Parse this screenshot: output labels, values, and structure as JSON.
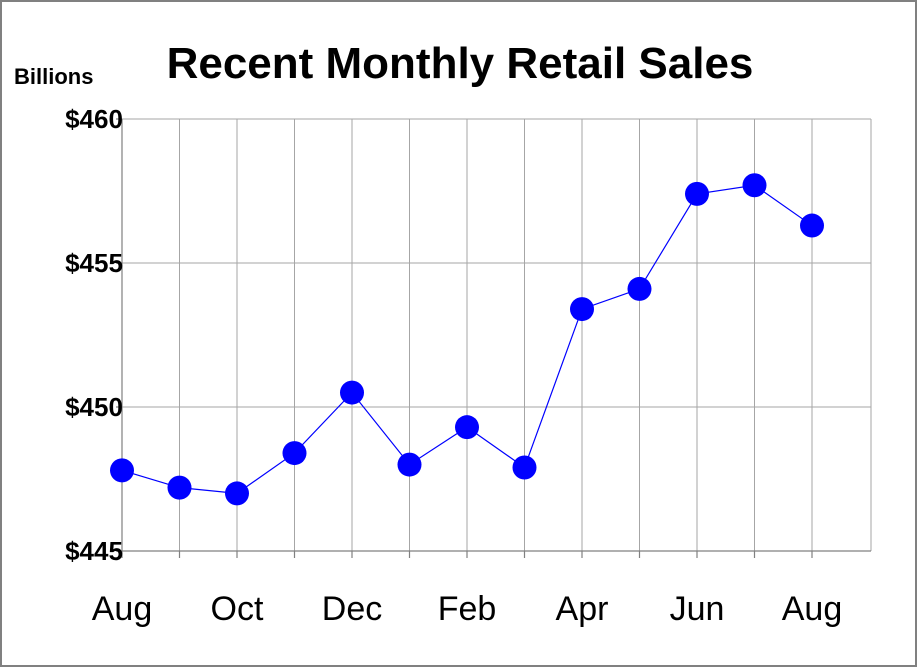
{
  "chart_data": {
    "type": "line",
    "title": "Recent Monthly Retail Sales",
    "ylabel": "Billions",
    "xlabel": "",
    "ylim": [
      445,
      460
    ],
    "yticks": [
      445,
      450,
      455,
      460
    ],
    "ytick_labels": [
      "$445",
      "$450",
      "$455",
      "$460"
    ],
    "categories": [
      "Aug",
      "Sep",
      "Oct",
      "Nov",
      "Dec",
      "Jan",
      "Feb",
      "Mar",
      "Apr",
      "May",
      "Jun",
      "Jul",
      "Aug"
    ],
    "xtick_labels": [
      "Aug",
      "",
      "Oct",
      "",
      "Dec",
      "",
      "Feb",
      "",
      "Apr",
      "",
      "Jun",
      "",
      "Aug"
    ],
    "series": [
      {
        "values": [
          447.8,
          447.2,
          447.0,
          448.4,
          450.5,
          448.0,
          449.3,
          447.9,
          453.4,
          454.1,
          457.4,
          457.7,
          456.3
        ],
        "color": "#0000ff"
      }
    ],
    "grid": true,
    "marker": "circle"
  }
}
